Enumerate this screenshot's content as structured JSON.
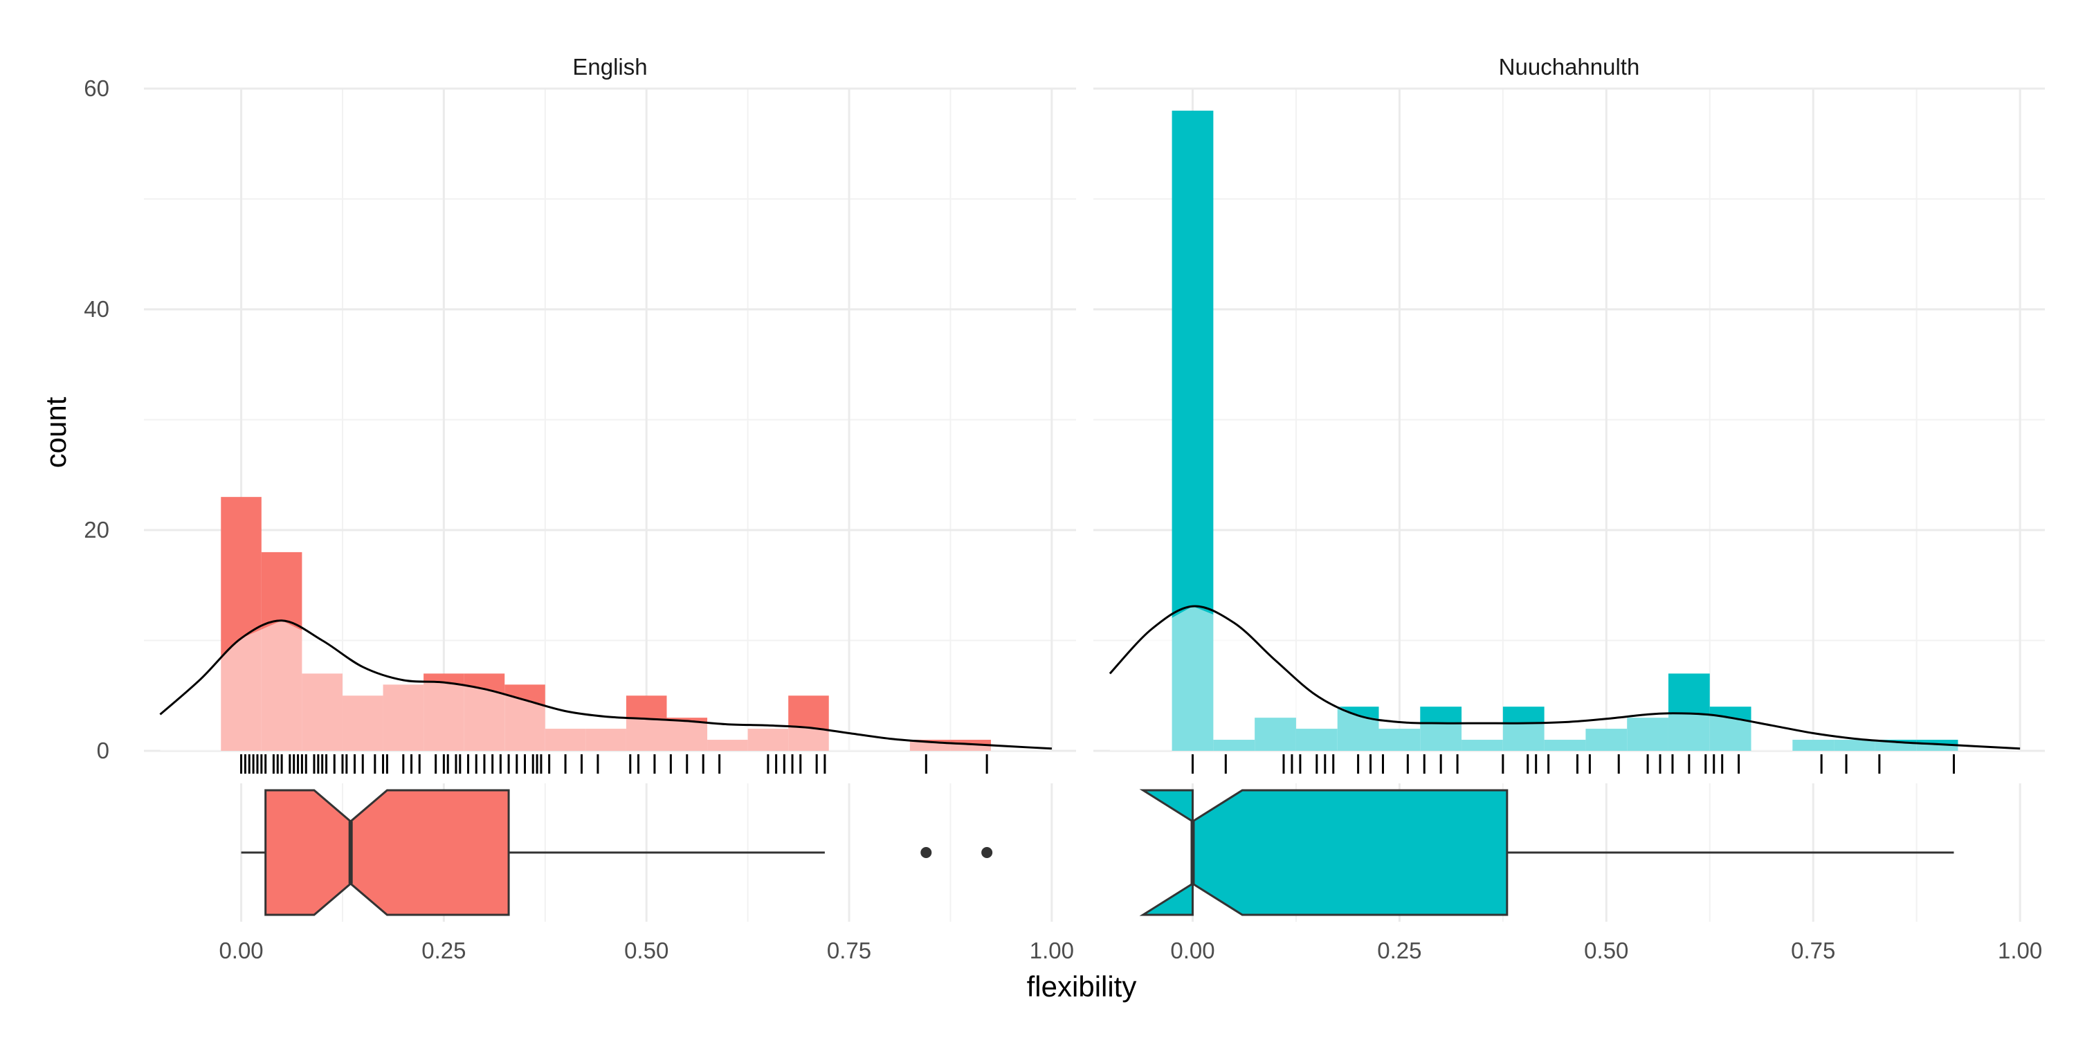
{
  "chart_data": {
    "type": "bar",
    "description_kind": "faceted histogram with density curve, rug and notched boxplot",
    "xlabel": "flexibility",
    "ylabel": "count",
    "xlim": [
      -0.12,
      1.03
    ],
    "ylim": [
      0,
      60
    ],
    "x_ticks": [
      0,
      0.25,
      0.5,
      0.75,
      1
    ],
    "x_tick_labels": [
      "0.00",
      "0.25",
      "0.50",
      "0.75",
      "1.00"
    ],
    "y_ticks": [
      0,
      20,
      40,
      60
    ],
    "y_tick_labels": [
      "0",
      "20",
      "40",
      "60"
    ],
    "grid": true,
    "bin_width": 0.05,
    "facets": [
      {
        "name": "English",
        "color": "#F8766D",
        "density_fill": "#FBD6D3",
        "bins": [
          {
            "x": 0.0,
            "count": 23
          },
          {
            "x": 0.05,
            "count": 18
          },
          {
            "x": 0.1,
            "count": 7
          },
          {
            "x": 0.15,
            "count": 5
          },
          {
            "x": 0.2,
            "count": 6
          },
          {
            "x": 0.25,
            "count": 7
          },
          {
            "x": 0.3,
            "count": 7
          },
          {
            "x": 0.35,
            "count": 6
          },
          {
            "x": 0.4,
            "count": 2
          },
          {
            "x": 0.45,
            "count": 2
          },
          {
            "x": 0.5,
            "count": 5
          },
          {
            "x": 0.55,
            "count": 3
          },
          {
            "x": 0.6,
            "count": 1
          },
          {
            "x": 0.65,
            "count": 2
          },
          {
            "x": 0.7,
            "count": 5
          },
          {
            "x": 0.75,
            "count": 0
          },
          {
            "x": 0.8,
            "count": 0
          },
          {
            "x": 0.85,
            "count": 1
          },
          {
            "x": 0.9,
            "count": 1
          }
        ],
        "density_curve": [
          [
            -0.1,
            3.3
          ],
          [
            -0.05,
            6.5
          ],
          [
            0.0,
            10.2
          ],
          [
            0.05,
            11.8
          ],
          [
            0.1,
            10.0
          ],
          [
            0.15,
            7.6
          ],
          [
            0.2,
            6.4
          ],
          [
            0.25,
            6.2
          ],
          [
            0.3,
            5.6
          ],
          [
            0.35,
            4.6
          ],
          [
            0.4,
            3.6
          ],
          [
            0.45,
            3.1
          ],
          [
            0.5,
            2.9
          ],
          [
            0.55,
            2.7
          ],
          [
            0.6,
            2.4
          ],
          [
            0.65,
            2.3
          ],
          [
            0.7,
            2.1
          ],
          [
            0.75,
            1.6
          ],
          [
            0.8,
            1.1
          ],
          [
            0.85,
            0.8
          ],
          [
            0.9,
            0.6
          ],
          [
            0.95,
            0.4
          ],
          [
            1.0,
            0.2
          ]
        ],
        "rug": [
          0.0,
          0.005,
          0.01,
          0.015,
          0.02,
          0.025,
          0.03,
          0.04,
          0.045,
          0.05,
          0.06,
          0.065,
          0.07,
          0.075,
          0.08,
          0.09,
          0.095,
          0.1,
          0.105,
          0.115,
          0.125,
          0.13,
          0.14,
          0.15,
          0.165,
          0.175,
          0.18,
          0.2,
          0.21,
          0.22,
          0.24,
          0.25,
          0.255,
          0.265,
          0.27,
          0.28,
          0.29,
          0.3,
          0.31,
          0.32,
          0.33,
          0.34,
          0.35,
          0.36,
          0.365,
          0.37,
          0.38,
          0.4,
          0.42,
          0.44,
          0.48,
          0.49,
          0.51,
          0.53,
          0.55,
          0.57,
          0.59,
          0.65,
          0.66,
          0.67,
          0.68,
          0.69,
          0.71,
          0.72,
          0.845,
          0.92
        ],
        "boxplot": {
          "min": 0.0,
          "q1": 0.03,
          "median": 0.135,
          "q3": 0.33,
          "max": 0.72,
          "notch_lo": 0.09,
          "notch_hi": 0.18,
          "outliers": [
            0.845,
            0.92
          ]
        }
      },
      {
        "name": "Nuuchahnulth",
        "color": "#00BFC4",
        "density_fill": "#BDEDEF",
        "bins": [
          {
            "x": 0.0,
            "count": 58
          },
          {
            "x": 0.05,
            "count": 1
          },
          {
            "x": 0.1,
            "count": 3
          },
          {
            "x": 0.15,
            "count": 2
          },
          {
            "x": 0.2,
            "count": 4
          },
          {
            "x": 0.25,
            "count": 2
          },
          {
            "x": 0.3,
            "count": 4
          },
          {
            "x": 0.35,
            "count": 1
          },
          {
            "x": 0.4,
            "count": 4
          },
          {
            "x": 0.45,
            "count": 1
          },
          {
            "x": 0.5,
            "count": 2
          },
          {
            "x": 0.55,
            "count": 3
          },
          {
            "x": 0.6,
            "count": 7
          },
          {
            "x": 0.65,
            "count": 4
          },
          {
            "x": 0.7,
            "count": 0
          },
          {
            "x": 0.75,
            "count": 1
          },
          {
            "x": 0.8,
            "count": 1
          },
          {
            "x": 0.85,
            "count": 1
          },
          {
            "x": 0.9,
            "count": 1
          }
        ],
        "density_curve": [
          [
            -0.1,
            7.0
          ],
          [
            -0.05,
            11.0
          ],
          [
            0.0,
            13.1
          ],
          [
            0.05,
            11.6
          ],
          [
            0.1,
            8.2
          ],
          [
            0.15,
            5.0
          ],
          [
            0.2,
            3.2
          ],
          [
            0.25,
            2.6
          ],
          [
            0.3,
            2.5
          ],
          [
            0.35,
            2.5
          ],
          [
            0.4,
            2.5
          ],
          [
            0.45,
            2.6
          ],
          [
            0.5,
            2.9
          ],
          [
            0.55,
            3.3
          ],
          [
            0.58,
            3.4
          ],
          [
            0.62,
            3.3
          ],
          [
            0.65,
            3.0
          ],
          [
            0.7,
            2.3
          ],
          [
            0.75,
            1.6
          ],
          [
            0.8,
            1.1
          ],
          [
            0.85,
            0.8
          ],
          [
            0.9,
            0.6
          ],
          [
            0.95,
            0.4
          ],
          [
            1.0,
            0.2
          ]
        ],
        "rug": [
          0.0,
          0.04,
          0.11,
          0.12,
          0.13,
          0.15,
          0.16,
          0.17,
          0.2,
          0.215,
          0.23,
          0.26,
          0.28,
          0.3,
          0.32,
          0.375,
          0.405,
          0.415,
          0.43,
          0.465,
          0.48,
          0.515,
          0.55,
          0.565,
          0.58,
          0.6,
          0.62,
          0.63,
          0.64,
          0.66,
          0.76,
          0.79,
          0.83,
          0.92
        ],
        "boxplot": {
          "min": 0.0,
          "q1": 0.0,
          "median": 0.0,
          "q3": 0.38,
          "max": 0.92,
          "notch_lo": -0.06,
          "notch_hi": 0.06,
          "outliers": []
        }
      }
    ]
  }
}
